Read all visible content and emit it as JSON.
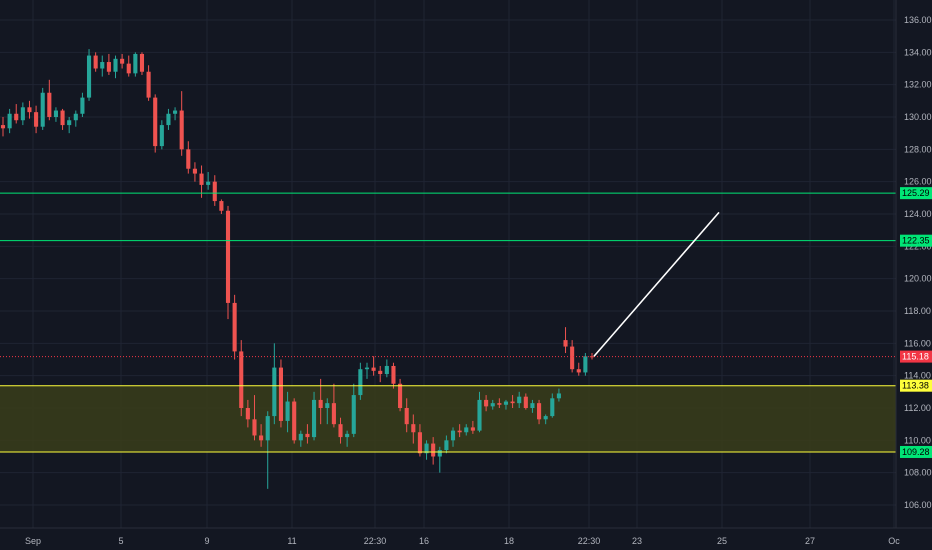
{
  "chart_data": {
    "type": "candlestick",
    "title": "",
    "xlabel": "",
    "ylabel": "",
    "ylim": [
      104.5,
      136.8
    ],
    "y_ticks": [
      106,
      108,
      110,
      112,
      114,
      116,
      118,
      120,
      122,
      124,
      126,
      128,
      130,
      132,
      134,
      136
    ],
    "y_tick_labels": [
      "106.00",
      "108.00",
      "110.00",
      "112.00",
      "114.00",
      "116.00",
      "118.00",
      "120.00",
      "122.00",
      "124.00",
      "126.00",
      "128.00",
      "130.00",
      "132.00",
      "134.00",
      "136.00"
    ],
    "x_tick_labels": [
      "Sep",
      "5",
      "9",
      "11",
      "22:30",
      "16",
      "18",
      "22:30",
      "23",
      "25",
      "27",
      "Oc"
    ],
    "colors": {
      "background": "#131722",
      "grid": "#1f2433",
      "up": "#26a69a",
      "down": "#ef5350",
      "resistance": "#00e676",
      "zone_border": "#ffff3b",
      "zone_fill": "#3a3d1a",
      "price_line": "#f23645",
      "arrow": "#ffffff",
      "axis_text": "#b2b5be"
    },
    "price_levels": [
      {
        "label": "125.29",
        "value": 125.29,
        "kind": "resistance"
      },
      {
        "label": "122.35",
        "value": 122.35,
        "kind": "resistance"
      },
      {
        "label": "115.18",
        "value": 115.18,
        "kind": "last-price"
      },
      {
        "label": "113.38",
        "value": 113.38,
        "kind": "zone-top"
      },
      {
        "label": "109.28",
        "value": 109.28,
        "kind": "zone-bottom"
      }
    ],
    "projection": {
      "from": 115.2,
      "to": 124.1
    },
    "candles": [
      [
        129.5,
        130.0,
        128.8,
        129.3
      ],
      [
        129.3,
        130.5,
        129.0,
        130.2
      ],
      [
        130.2,
        130.8,
        129.6,
        129.8
      ],
      [
        129.8,
        130.9,
        129.5,
        130.6
      ],
      [
        130.6,
        131.0,
        129.9,
        130.3
      ],
      [
        130.3,
        130.7,
        129.0,
        129.4
      ],
      [
        129.4,
        131.8,
        129.2,
        131.5
      ],
      [
        131.5,
        132.3,
        129.8,
        130.0
      ],
      [
        130.0,
        130.6,
        129.7,
        130.4
      ],
      [
        130.4,
        130.5,
        129.2,
        129.5
      ],
      [
        129.5,
        130.0,
        129.0,
        129.8
      ],
      [
        129.8,
        130.4,
        129.4,
        130.2
      ],
      [
        130.2,
        131.5,
        130.0,
        131.2
      ],
      [
        131.2,
        134.2,
        131.0,
        133.8
      ],
      [
        133.8,
        134.0,
        132.8,
        133.0
      ],
      [
        133.0,
        133.8,
        132.5,
        133.4
      ],
      [
        133.4,
        133.9,
        132.6,
        132.8
      ],
      [
        132.8,
        133.8,
        132.4,
        133.6
      ],
      [
        133.6,
        133.9,
        133.0,
        133.3
      ],
      [
        133.3,
        133.8,
        132.5,
        132.7
      ],
      [
        132.7,
        134.0,
        132.5,
        133.9
      ],
      [
        133.9,
        134.0,
        132.6,
        132.8
      ],
      [
        132.8,
        133.2,
        131.0,
        131.2
      ],
      [
        131.2,
        131.4,
        127.8,
        128.2
      ],
      [
        128.2,
        129.8,
        128.0,
        129.5
      ],
      [
        129.5,
        130.5,
        129.2,
        130.2
      ],
      [
        130.2,
        130.6,
        129.8,
        130.4
      ],
      [
        130.4,
        131.6,
        127.6,
        128.0
      ],
      [
        128.0,
        128.5,
        126.5,
        126.8
      ],
      [
        126.8,
        127.2,
        126.0,
        126.5
      ],
      [
        126.5,
        127.0,
        125.0,
        125.8
      ],
      [
        125.8,
        126.6,
        125.5,
        126.0
      ],
      [
        126.0,
        126.4,
        124.5,
        124.8
      ],
      [
        124.8,
        124.9,
        124.0,
        124.2
      ],
      [
        124.2,
        124.5,
        117.5,
        118.5
      ],
      [
        118.5,
        119.0,
        115.0,
        115.5
      ],
      [
        115.5,
        116.2,
        111.5,
        112.0
      ],
      [
        112.0,
        112.5,
        110.8,
        111.3
      ],
      [
        111.3,
        112.8,
        110.0,
        110.3
      ],
      [
        110.3,
        111.0,
        109.6,
        110.0
      ],
      [
        110.0,
        111.8,
        107.0,
        111.5
      ],
      [
        111.5,
        116.0,
        111.0,
        114.5
      ],
      [
        114.5,
        115.0,
        110.8,
        111.2
      ],
      [
        111.2,
        113.0,
        110.5,
        112.4
      ],
      [
        112.4,
        112.6,
        109.8,
        110.0
      ],
      [
        110.0,
        110.6,
        109.6,
        110.4
      ],
      [
        110.4,
        111.0,
        109.8,
        110.2
      ],
      [
        110.2,
        113.0,
        110.0,
        112.5
      ],
      [
        112.5,
        113.8,
        111.0,
        112.0
      ],
      [
        112.0,
        112.6,
        111.0,
        112.3
      ],
      [
        112.3,
        113.5,
        110.8,
        111.0
      ],
      [
        111.0,
        111.4,
        109.8,
        110.2
      ],
      [
        110.2,
        110.6,
        109.6,
        110.4
      ],
      [
        110.4,
        113.5,
        110.2,
        112.8
      ],
      [
        112.8,
        114.8,
        112.5,
        114.4
      ],
      [
        114.4,
        114.8,
        113.8,
        114.5
      ],
      [
        114.5,
        115.2,
        114.0,
        114.3
      ],
      [
        114.3,
        114.6,
        113.6,
        114.1
      ],
      [
        114.1,
        115.0,
        113.9,
        114.6
      ],
      [
        114.6,
        114.8,
        113.2,
        113.5
      ],
      [
        113.5,
        113.8,
        111.8,
        112.0
      ],
      [
        112.0,
        112.6,
        110.5,
        111.0
      ],
      [
        111.0,
        111.6,
        109.8,
        110.5
      ],
      [
        110.5,
        111.0,
        109.0,
        109.2
      ],
      [
        109.2,
        110.0,
        108.8,
        109.8
      ],
      [
        109.8,
        110.2,
        108.5,
        109.0
      ],
      [
        109.0,
        109.6,
        108.0,
        109.4
      ],
      [
        109.4,
        110.3,
        109.2,
        110.0
      ],
      [
        110.0,
        110.8,
        109.6,
        110.6
      ],
      [
        110.6,
        111.0,
        110.2,
        110.5
      ],
      [
        110.5,
        111.0,
        110.3,
        110.8
      ],
      [
        110.8,
        111.2,
        110.4,
        110.6
      ],
      [
        110.6,
        113.0,
        110.5,
        112.5
      ],
      [
        112.5,
        112.8,
        111.8,
        112.1
      ],
      [
        112.1,
        112.5,
        111.9,
        112.3
      ],
      [
        112.3,
        112.6,
        112.0,
        112.2
      ],
      [
        112.2,
        112.5,
        111.9,
        112.4
      ],
      [
        112.4,
        112.8,
        112.0,
        112.3
      ],
      [
        112.3,
        113.0,
        112.0,
        112.7
      ],
      [
        112.7,
        112.9,
        111.9,
        112.0
      ],
      [
        112.0,
        112.5,
        111.7,
        112.3
      ],
      [
        112.3,
        112.5,
        111.0,
        111.3
      ],
      [
        111.3,
        111.6,
        111.0,
        111.5
      ],
      [
        111.5,
        112.9,
        111.4,
        112.6
      ],
      [
        112.6,
        113.2,
        112.4,
        112.9
      ],
      [
        116.2,
        117.0,
        115.4,
        115.8
      ],
      [
        115.8,
        116.2,
        114.2,
        114.4
      ],
      [
        114.4,
        114.8,
        114.0,
        114.2
      ],
      [
        114.2,
        115.4,
        114.0,
        115.2
      ],
      [
        115.2,
        115.4,
        115.0,
        115.18
      ]
    ]
  }
}
